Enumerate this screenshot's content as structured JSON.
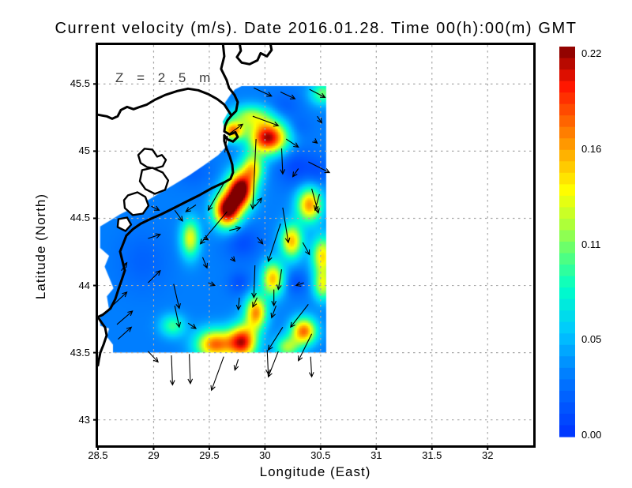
{
  "title": "Current velocity (m/s). Date 2016.01.28. Time 00(h):00(m) GMT",
  "annotation": {
    "text": "Z = 2.5 m"
  },
  "axes": {
    "x": {
      "label": "Longitude (East)",
      "range": [
        28.5,
        32.41
      ],
      "minor_step": 0.1,
      "ticks": [
        {
          "v": 28.5,
          "label": "28.5"
        },
        {
          "v": 29,
          "label": "29"
        },
        {
          "v": 29.5,
          "label": "29.5"
        },
        {
          "v": 30,
          "label": "30"
        },
        {
          "v": 30.5,
          "label": "30.5"
        },
        {
          "v": 31,
          "label": "31"
        },
        {
          "v": 31.5,
          "label": "31.5"
        },
        {
          "v": 32,
          "label": "32"
        }
      ]
    },
    "y": {
      "label": "Latitude (North)",
      "range": [
        42.81,
        45.79
      ],
      "minor_step": 0.1,
      "ticks": [
        {
          "v": 43,
          "label": "43"
        },
        {
          "v": 43.5,
          "label": "43.5"
        },
        {
          "v": 44,
          "label": "44"
        },
        {
          "v": 44.5,
          "label": "44.5"
        },
        {
          "v": 45,
          "label": "45"
        },
        {
          "v": 45.5,
          "label": "45.5"
        }
      ]
    }
  },
  "colorbar": {
    "min": 0,
    "max": 0.22,
    "segments": 34,
    "tick_labels": [
      "0.22",
      "0.16",
      "0.11",
      "0.05",
      "0.00"
    ]
  },
  "colors": {
    "grid": "#a8a8a8",
    "coast": "#000000",
    "arrow": "#000000",
    "annotation": "#3f3f3f",
    "frame": "#000000",
    "background": "#ffffff",
    "palette_stops": [
      [
        0.0,
        "#0032FF"
      ],
      [
        0.15,
        "#0078FF"
      ],
      [
        0.27,
        "#00C8FF"
      ],
      [
        0.38,
        "#00FFC8"
      ],
      [
        0.46,
        "#50FF80"
      ],
      [
        0.54,
        "#AAFF3C"
      ],
      [
        0.63,
        "#FFFF00"
      ],
      [
        0.73,
        "#FFAA00"
      ],
      [
        0.82,
        "#FF5A00"
      ],
      [
        0.9,
        "#FF1400"
      ],
      [
        1.0,
        "#800000"
      ]
    ]
  },
  "chart_data": {
    "type": "heatmap",
    "title": "Current velocity (m/s). Date 2016.01.28. Time 00(h):00(m) GMT",
    "xlabel": "Longitude (East)",
    "ylabel": "Latitude (North)",
    "units": "m/s",
    "depth": "2.5 m",
    "value_range": [
      0,
      0.22
    ],
    "grid_on": true,
    "legend_position": "right-colorbar",
    "data_extent": {
      "lon": [
        28.52,
        30.55
      ],
      "lat": [
        43.5,
        45.485
      ]
    },
    "region_polygon": [
      [
        29.79,
        45.485
      ],
      [
        30.55,
        45.485
      ],
      [
        30.55,
        43.5
      ],
      [
        28.635,
        43.5
      ],
      [
        28.635,
        43.56
      ],
      [
        28.58,
        43.62
      ],
      [
        28.6,
        43.68
      ],
      [
        28.52,
        43.7
      ],
      [
        28.52,
        43.78
      ],
      [
        28.6,
        43.82
      ],
      [
        28.58,
        43.92
      ],
      [
        28.64,
        43.98
      ],
      [
        28.6,
        44.06
      ],
      [
        28.56,
        44.14
      ],
      [
        28.6,
        44.22
      ],
      [
        28.52,
        44.28
      ],
      [
        28.52,
        44.44
      ],
      [
        28.6,
        44.48
      ],
      [
        28.7,
        44.53
      ],
      [
        28.8,
        44.57
      ],
      [
        28.92,
        44.62
      ],
      [
        29.04,
        44.68
      ],
      [
        29.18,
        44.75
      ],
      [
        29.32,
        44.82
      ],
      [
        29.46,
        44.9
      ],
      [
        29.58,
        44.97
      ],
      [
        29.66,
        45.04
      ],
      [
        29.68,
        45.1
      ],
      [
        29.64,
        45.16
      ],
      [
        29.62,
        45.22
      ],
      [
        29.67,
        45.29
      ],
      [
        29.64,
        45.36
      ],
      [
        29.69,
        45.42
      ],
      [
        29.73,
        45.46
      ]
    ],
    "field_base": 0.035,
    "field_blobs": [
      {
        "lon": 29.71,
        "lat": 45.15,
        "amp": 0.13,
        "sx": 0.07,
        "sy": 0.05
      },
      {
        "lon": 29.87,
        "lat": 45.26,
        "amp": 0.08,
        "sx": 0.13,
        "sy": 0.06
      },
      {
        "lon": 30.03,
        "lat": 45.1,
        "amp": 0.18,
        "sx": 0.12,
        "sy": 0.085
      },
      {
        "lon": 30.52,
        "lat": 45.43,
        "amp": 0.07,
        "sx": 0.08,
        "sy": 0.06
      },
      {
        "lon": 29.89,
        "lat": 44.87,
        "amp": 0.1,
        "sx": 0.07,
        "sy": 0.08
      },
      {
        "lon": 29.78,
        "lat": 44.71,
        "amp": 0.2,
        "sx": 0.085,
        "sy": 0.095
      },
      {
        "lon": 29.66,
        "lat": 44.56,
        "amp": 0.19,
        "sx": 0.085,
        "sy": 0.09
      },
      {
        "lon": 30.4,
        "lat": 44.6,
        "amp": 0.13,
        "sx": 0.08,
        "sy": 0.09
      },
      {
        "lon": 30.24,
        "lat": 44.33,
        "amp": 0.12,
        "sx": 0.07,
        "sy": 0.09
      },
      {
        "lon": 30.07,
        "lat": 44.05,
        "amp": 0.12,
        "sx": 0.07,
        "sy": 0.09
      },
      {
        "lon": 29.92,
        "lat": 43.8,
        "amp": 0.13,
        "sx": 0.07,
        "sy": 0.09
      },
      {
        "lon": 29.8,
        "lat": 43.58,
        "amp": 0.16,
        "sx": 0.09,
        "sy": 0.09
      },
      {
        "lon": 29.55,
        "lat": 43.56,
        "amp": 0.14,
        "sx": 0.12,
        "sy": 0.08
      },
      {
        "lon": 30.35,
        "lat": 43.66,
        "amp": 0.14,
        "sx": 0.08,
        "sy": 0.07
      },
      {
        "lon": 30.52,
        "lat": 44.22,
        "amp": 0.11,
        "sx": 0.07,
        "sy": 0.1
      },
      {
        "lon": 30.52,
        "lat": 44.0,
        "amp": 0.09,
        "sx": 0.06,
        "sy": 0.08
      },
      {
        "lon": 30.2,
        "lat": 43.54,
        "amp": 0.08,
        "sx": 0.08,
        "sy": 0.06
      },
      {
        "lon": 29.33,
        "lat": 44.35,
        "amp": 0.1,
        "sx": 0.06,
        "sy": 0.1
      },
      {
        "lon": 29.17,
        "lat": 43.7,
        "amp": 0.06,
        "sx": 0.08,
        "sy": 0.06
      },
      {
        "lon": 30.28,
        "lat": 44.88,
        "amp": -0.025,
        "sx": 0.12,
        "sy": 0.1
      },
      {
        "lon": 29.8,
        "lat": 44.32,
        "amp": -0.022,
        "sx": 0.11,
        "sy": 0.09
      },
      {
        "lon": 29.77,
        "lat": 44.02,
        "amp": -0.02,
        "sx": 0.07,
        "sy": 0.06
      },
      {
        "lon": 30.28,
        "lat": 44.02,
        "amp": -0.02,
        "sx": 0.07,
        "sy": 0.06
      },
      {
        "lon": 30.17,
        "lat": 45.33,
        "amp": -0.015,
        "sx": 0.1,
        "sy": 0.07
      },
      {
        "lon": 28.9,
        "lat": 44.18,
        "amp": -0.012,
        "sx": 0.15,
        "sy": 0.15
      },
      {
        "lon": 29.35,
        "lat": 44.85,
        "amp": -0.012,
        "sx": 0.12,
        "sy": 0.08
      },
      {
        "lon": 30.48,
        "lat": 44.85,
        "amp": -0.015,
        "sx": 0.07,
        "sy": 0.07
      },
      {
        "lon": 30.3,
        "lat": 45.18,
        "amp": -0.012,
        "sx": 0.08,
        "sy": 0.06
      }
    ],
    "arrows": [
      [
        29.9,
        45.47,
        0.16,
        -0.06
      ],
      [
        30.14,
        45.44,
        0.13,
        -0.05
      ],
      [
        30.4,
        45.46,
        0.14,
        -0.06
      ],
      [
        29.89,
        45.26,
        0.23,
        -0.07
      ],
      [
        30.47,
        45.26,
        0.04,
        -0.05
      ],
      [
        29.68,
        45.13,
        0.12,
        0.07
      ],
      [
        30.19,
        45.09,
        0.11,
        -0.06
      ],
      [
        30.44,
        45.08,
        0.03,
        -0.02
      ],
      [
        29.92,
        45.09,
        -0.03,
        -0.52
      ],
      [
        30.15,
        45.02,
        0.01,
        -0.19
      ],
      [
        29.64,
        44.99,
        0.02,
        0.12
      ],
      [
        30.39,
        44.92,
        0.19,
        -0.08
      ],
      [
        30.3,
        44.87,
        -0.05,
        -0.06
      ],
      [
        29.63,
        44.76,
        -0.14,
        -0.2
      ],
      [
        29.66,
        44.55,
        -0.24,
        -0.24
      ],
      [
        29.91,
        44.59,
        0.06,
        0.06
      ],
      [
        30.16,
        44.58,
        0.05,
        -0.26
      ],
      [
        30.42,
        44.72,
        0.06,
        -0.18
      ],
      [
        30.49,
        44.68,
        -0.04,
        -0.12
      ],
      [
        28.98,
        44.59,
        0.07,
        -0.03
      ],
      [
        29.19,
        44.56,
        0.07,
        -0.08
      ],
      [
        29.38,
        44.6,
        -0.09,
        -0.05
      ],
      [
        29.68,
        44.41,
        0.1,
        0.02
      ],
      [
        29.93,
        44.36,
        0.05,
        -0.05
      ],
      [
        30.14,
        44.46,
        -0.11,
        -0.28
      ],
      [
        30.34,
        44.32,
        0.06,
        -0.09
      ],
      [
        28.95,
        44.35,
        0.11,
        0.03
      ],
      [
        29.45,
        44.36,
        0.04,
        -0.02
      ],
      [
        29.44,
        44.21,
        0.04,
        -0.08
      ],
      [
        29.7,
        44.21,
        0.03,
        -0.03
      ],
      [
        29.91,
        44.15,
        -0.01,
        -0.24
      ],
      [
        30.15,
        44.12,
        -0.03,
        -0.15
      ],
      [
        28.71,
        44.11,
        0.05,
        0.06
      ],
      [
        28.95,
        44.02,
        0.11,
        0.09
      ],
      [
        29.18,
        44.01,
        0.05,
        -0.18
      ],
      [
        29.49,
        44.02,
        0.06,
        -0.02
      ],
      [
        30.35,
        44.02,
        -0.07,
        -0.02
      ],
      [
        30.08,
        43.97,
        0.0,
        -0.12
      ],
      [
        29.77,
        43.91,
        -0.01,
        -0.09
      ],
      [
        29.93,
        43.91,
        -0.04,
        -0.07
      ],
      [
        30.1,
        43.85,
        -0.04,
        -0.09
      ],
      [
        30.39,
        43.86,
        -0.16,
        -0.17
      ],
      [
        29.19,
        43.85,
        0.04,
        -0.16
      ],
      [
        28.63,
        43.85,
        0.13,
        0.1
      ],
      [
        28.67,
        43.71,
        0.14,
        0.1
      ],
      [
        29.31,
        43.72,
        0.07,
        -0.04
      ],
      [
        30.16,
        43.69,
        -0.13,
        -0.17
      ],
      [
        30.42,
        43.64,
        -0.12,
        -0.2
      ],
      [
        28.95,
        43.51,
        0.09,
        -0.08
      ],
      [
        29.16,
        43.48,
        0.01,
        -0.22
      ],
      [
        29.32,
        43.49,
        0.01,
        -0.22
      ],
      [
        29.63,
        43.47,
        -0.11,
        -0.25
      ],
      [
        29.76,
        43.45,
        -0.03,
        -0.08
      ],
      [
        30.02,
        43.52,
        0.01,
        -0.18
      ],
      [
        30.12,
        43.51,
        -0.09,
        -0.19
      ],
      [
        30.41,
        43.47,
        0.01,
        -0.15
      ],
      [
        28.68,
        43.6,
        0.12,
        0.09
      ]
    ]
  },
  "map": {
    "coast_paths": [
      [
        [
          29.621,
          45.812
        ],
        [
          29.635,
          45.706
        ],
        [
          29.606,
          45.612
        ],
        [
          29.656,
          45.529
        ],
        [
          29.677,
          45.471
        ],
        [
          29.727,
          45.418
        ],
        [
          29.755,
          45.365
        ],
        [
          29.741,
          45.3
        ],
        [
          29.699,
          45.265
        ],
        [
          29.635,
          45.347
        ],
        [
          29.571,
          45.388
        ],
        [
          29.493,
          45.424
        ],
        [
          29.401,
          45.453
        ],
        [
          29.309,
          45.465
        ],
        [
          29.209,
          45.447
        ],
        [
          29.103,
          45.418
        ],
        [
          29.011,
          45.382
        ],
        [
          28.94,
          45.347
        ],
        [
          28.876,
          45.329
        ],
        [
          28.819,
          45.312
        ],
        [
          28.762,
          45.329
        ],
        [
          28.706,
          45.306
        ],
        [
          28.677,
          45.259
        ],
        [
          28.628,
          45.241
        ],
        [
          28.578,
          45.259
        ],
        [
          28.5,
          45.271
        ]
      ],
      [
        [
          29.699,
          45.265
        ],
        [
          29.663,
          45.229
        ],
        [
          29.642,
          45.188
        ],
        [
          29.635,
          45.147
        ],
        [
          29.684,
          45.124
        ],
        [
          29.734,
          45.141
        ],
        [
          29.755,
          45.106
        ],
        [
          29.713,
          45.071
        ],
        [
          29.663,
          45.088
        ],
        [
          29.635,
          45.118
        ],
        [
          29.635,
          45.076
        ],
        [
          29.656,
          45.018
        ],
        [
          29.684,
          44.959
        ],
        [
          29.706,
          44.9
        ],
        [
          29.713,
          44.841
        ],
        [
          29.691,
          44.794
        ],
        [
          29.628,
          44.765
        ],
        [
          29.521,
          44.724
        ],
        [
          29.408,
          44.671
        ],
        [
          29.294,
          44.624
        ],
        [
          29.181,
          44.576
        ],
        [
          29.067,
          44.529
        ],
        [
          28.968,
          44.494
        ],
        [
          28.883,
          44.459
        ],
        [
          28.812,
          44.418
        ],
        [
          28.755,
          44.371
        ],
        [
          28.727,
          44.312
        ],
        [
          28.699,
          44.253
        ],
        [
          28.72,
          44.182
        ],
        [
          28.741,
          44.112
        ],
        [
          28.713,
          44.041
        ],
        [
          28.684,
          43.971
        ],
        [
          28.656,
          43.9
        ],
        [
          28.613,
          43.829
        ],
        [
          28.543,
          43.782
        ],
        [
          28.5,
          43.765
        ],
        [
          28.528,
          43.729
        ],
        [
          28.564,
          43.688
        ],
        [
          28.578,
          43.629
        ],
        [
          28.55,
          43.559
        ],
        [
          28.521,
          43.5
        ],
        [
          28.507,
          43.441
        ],
        [
          28.5,
          43.406
        ]
      ],
      [
        [
          29.77,
          45.812
        ],
        [
          29.784,
          45.747
        ],
        [
          29.748,
          45.7
        ],
        [
          29.791,
          45.659
        ],
        [
          29.862,
          45.647
        ],
        [
          29.933,
          45.676
        ],
        [
          29.961,
          45.729
        ],
        [
          30.018,
          45.706
        ],
        [
          30.06,
          45.753
        ],
        [
          30.046,
          45.812
        ]
      ]
    ],
    "lagoons": [
      [
        [
          28.862,
          44.971
        ],
        [
          28.918,
          45.018
        ],
        [
          28.989,
          45.012
        ],
        [
          29.032,
          44.959
        ],
        [
          29.074,
          44.971
        ],
        [
          29.11,
          44.935
        ],
        [
          29.082,
          44.888
        ],
        [
          29.011,
          44.871
        ],
        [
          28.94,
          44.882
        ],
        [
          28.883,
          44.912
        ]
      ],
      [
        [
          28.897,
          44.859
        ],
        [
          28.989,
          44.876
        ],
        [
          29.082,
          44.841
        ],
        [
          29.131,
          44.782
        ],
        [
          29.103,
          44.712
        ],
        [
          29.011,
          44.682
        ],
        [
          28.926,
          44.718
        ],
        [
          28.876,
          44.776
        ]
      ],
      [
        [
          28.77,
          44.671
        ],
        [
          28.855,
          44.694
        ],
        [
          28.926,
          44.659
        ],
        [
          28.954,
          44.594
        ],
        [
          28.904,
          44.535
        ],
        [
          28.812,
          44.524
        ],
        [
          28.741,
          44.576
        ],
        [
          28.734,
          44.635
        ]
      ],
      [
        [
          28.684,
          44.494
        ],
        [
          28.762,
          44.506
        ],
        [
          28.798,
          44.453
        ],
        [
          28.748,
          44.406
        ],
        [
          28.677,
          44.435
        ]
      ]
    ]
  }
}
